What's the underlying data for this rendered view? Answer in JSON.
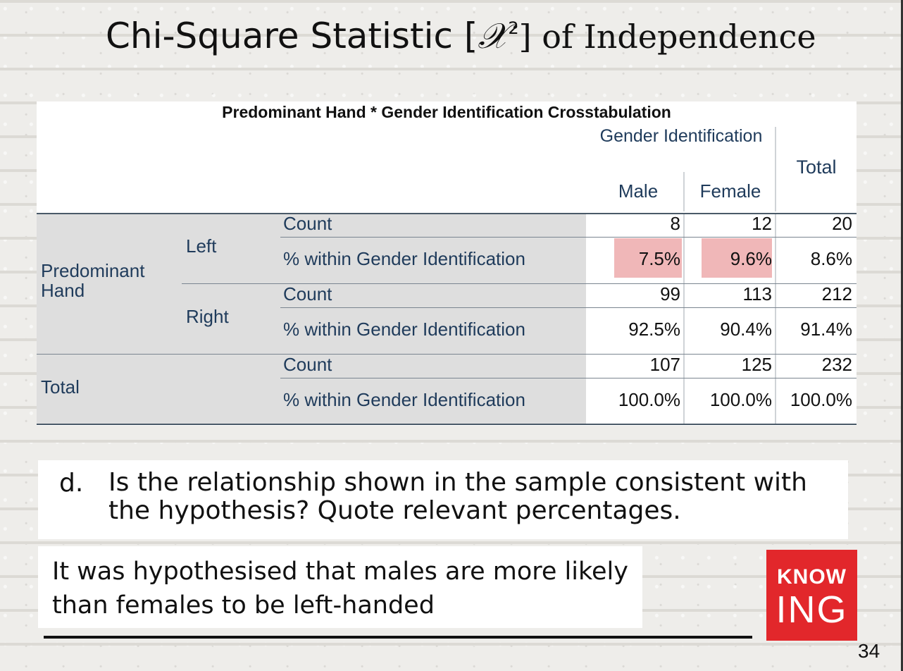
{
  "slide": {
    "title_part1": "Chi-Square Statistic [",
    "title_chi": "𝒳",
    "title_sup": "2",
    "title_part2": "] of Independence",
    "page_number": "34"
  },
  "crosstab": {
    "title": "Predominant Hand * Gender Identification Crosstabulation",
    "header_gender": "Gender Identification",
    "header_total": "Total",
    "header_male": "Male",
    "header_female": "Female",
    "row_group_predominant": "Predominant Hand",
    "row_group_total": "Total",
    "sub_left": "Left",
    "sub_right": "Right",
    "rows": [
      {
        "stat": "Count",
        "male": "8",
        "female": "12",
        "total": "20"
      },
      {
        "stat": "% within Gender Identification",
        "male": "7.5%",
        "female": "9.6%",
        "total": "8.6%"
      },
      {
        "stat": "Count",
        "male": "99",
        "female": "113",
        "total": "212"
      },
      {
        "stat": "% within Gender Identification",
        "male": "92.5%",
        "female": "90.4%",
        "total": "91.4%"
      },
      {
        "stat": "Count",
        "male": "107",
        "female": "125",
        "total": "232"
      },
      {
        "stat": "% within Gender Identification",
        "male": "100.0%",
        "female": "100.0%",
        "total": "100.0%"
      }
    ],
    "highlight_color": "#f0b7b8"
  },
  "question": {
    "letter": "d.",
    "text": "Is the relationship shown in the sample consistent with the hypothesis? Quote relevant percentages."
  },
  "answer": {
    "text": "It was hypothesised that males are more likely than females to be left-handed"
  },
  "logo": {
    "line1": "KNOW",
    "line2": "ING",
    "color": "#e2272b"
  }
}
